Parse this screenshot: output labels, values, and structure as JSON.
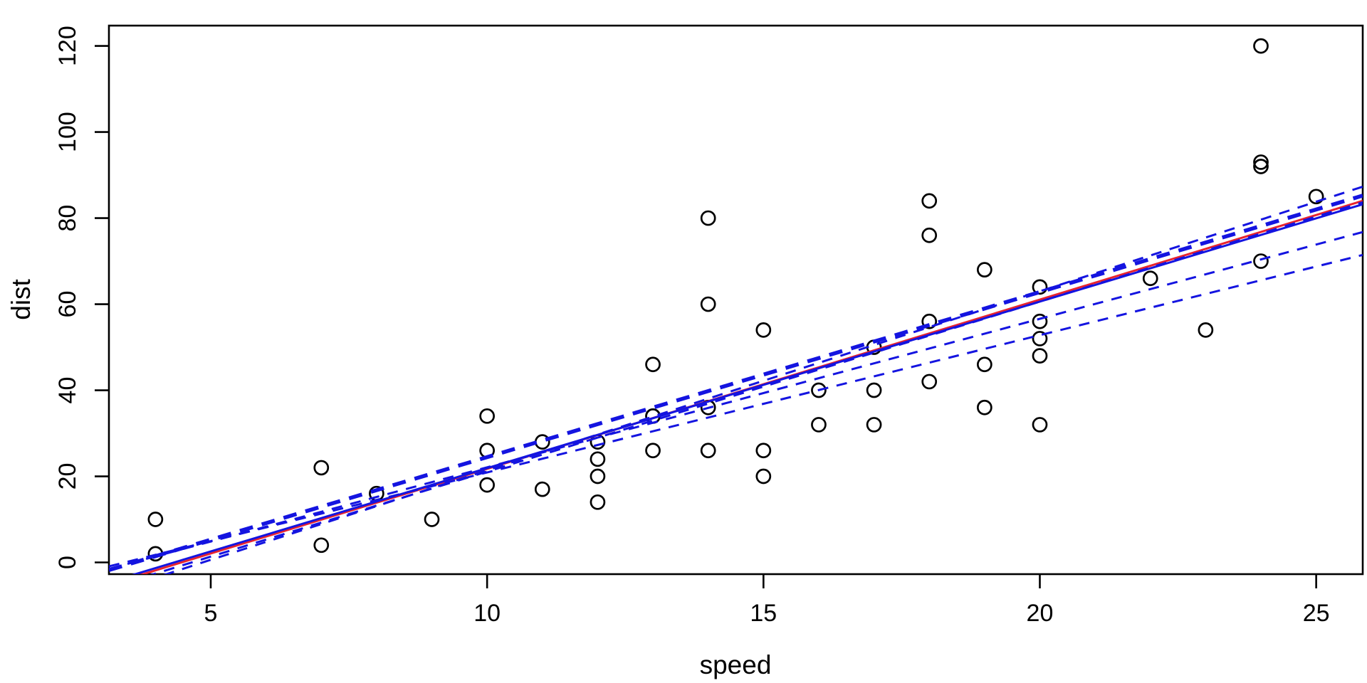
{
  "figure": {
    "background_color": "#ffffff",
    "xlabel": "speed",
    "ylabel": "dist"
  },
  "chart_data": {
    "type": "scatter",
    "title": "",
    "xlabel": "speed",
    "ylabel": "dist",
    "xlim": [
      3.158,
      25.842
    ],
    "ylim": [
      -2.728,
      124.728
    ],
    "x_ticks": [
      5,
      10,
      15,
      20,
      25
    ],
    "y_ticks": [
      0,
      20,
      40,
      60,
      80,
      100,
      120
    ],
    "grid": false,
    "legend": null,
    "point_style": "open-circle",
    "colors": {
      "points": "#000000",
      "axis": "#000000",
      "ols_line": "#e8232e",
      "quantile_lines": "#1414e0"
    },
    "points": {
      "x": [
        4,
        4,
        7,
        7,
        8,
        9,
        10,
        10,
        10,
        11,
        11,
        12,
        12,
        12,
        12,
        13,
        13,
        13,
        13,
        14,
        14,
        14,
        14,
        15,
        15,
        15,
        16,
        16,
        17,
        17,
        17,
        18,
        18,
        18,
        18,
        19,
        19,
        19,
        20,
        20,
        20,
        20,
        20,
        22,
        23,
        24,
        24,
        24,
        24,
        25
      ],
      "y": [
        2,
        10,
        4,
        22,
        16,
        10,
        18,
        26,
        34,
        17,
        28,
        14,
        20,
        24,
        28,
        26,
        34,
        34,
        46,
        26,
        36,
        60,
        80,
        20,
        26,
        54,
        32,
        40,
        32,
        40,
        50,
        42,
        56,
        76,
        84,
        36,
        46,
        68,
        32,
        48,
        52,
        56,
        64,
        66,
        54,
        70,
        92,
        93,
        120,
        85
      ]
    },
    "lines": [
      {
        "name": "ols-fit-line",
        "color": "#e8232e",
        "style": "solid",
        "width": 3,
        "slope": 3.932,
        "intercept": -17.58
      },
      {
        "name": "median-fit-line",
        "color": "#1414e0",
        "style": "solid",
        "width": 3,
        "slope": 3.87,
        "intercept": -16.8
      },
      {
        "name": "quantile-line-thick",
        "color": "#1414e0",
        "style": "dashed",
        "width": 5.5,
        "slope": 3.836,
        "intercept": -13.9
      },
      {
        "name": "quantile-line-upper",
        "color": "#1414e0",
        "style": "dashed",
        "width": 3,
        "slope": 4.16,
        "intercept": -20.2
      },
      {
        "name": "quantile-line-mid-upper",
        "color": "#1414e0",
        "style": "dashed",
        "width": 3,
        "slope": 3.95,
        "intercept": -18.4
      },
      {
        "name": "quantile-line-mid-lower",
        "color": "#1414e0",
        "style": "dashed",
        "width": 3,
        "slope": 3.45,
        "intercept": -12.4
      },
      {
        "name": "quantile-line-lower",
        "color": "#1414e0",
        "style": "dashed",
        "width": 3,
        "slope": 3.19,
        "intercept": -11.0
      }
    ]
  }
}
